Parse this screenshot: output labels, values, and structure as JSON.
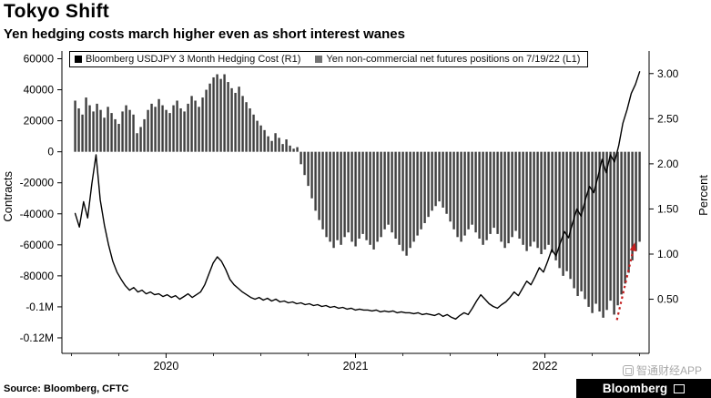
{
  "header": {
    "title": "Tokyo Shift",
    "subtitle": "Yen hedging costs march higher even as short interest wanes"
  },
  "legend": [
    {
      "label": "Bloomberg USDJPY 3 Month Hedging Cost (R1)",
      "color": "#000000"
    },
    {
      "label": "Yen non-commercial net futures positions on 7/19/22 (L1)",
      "color": "#737373"
    }
  ],
  "footer": {
    "source": "Source: Bloomberg, CFTC",
    "watermark": "智通财经APP",
    "brand": "Bloomberg"
  },
  "chart_data": {
    "type": "bar-line-combo",
    "title": "Tokyo Shift",
    "subtitle": "Yen hedging costs march higher even as short interest wanes",
    "grid": false,
    "legend_position": "top-inside-boxed",
    "x_axis": {
      "range": [
        2019.45,
        2022.55
      ],
      "tick_values": [
        2020,
        2021,
        2022
      ],
      "tick_labels": [
        "2020",
        "2021",
        "2022"
      ]
    },
    "left_axis": {
      "label": "Contracts",
      "range": [
        -130000,
        65000
      ],
      "tick_values": [
        60000,
        40000,
        20000,
        0,
        -20000,
        -40000,
        -60000,
        -80000,
        -100000,
        -120000
      ],
      "tick_labels": [
        "60000",
        "40000",
        "20000",
        "0",
        "-20000",
        "-40000",
        "-60000",
        "-80000",
        "-0.1M",
        "-0.12M"
      ]
    },
    "right_axis": {
      "label": "Percent",
      "range": [
        -0.1,
        3.25
      ],
      "tick_values": [
        3.0,
        2.5,
        2.0,
        1.5,
        1.0,
        0.5
      ],
      "tick_labels": [
        "3.00",
        "2.50",
        "2.00",
        "1.50",
        "1.00",
        "0.50"
      ]
    },
    "line": {
      "name": "Bloomberg USDJPY 3 Month Hedging Cost (R1)",
      "axis": "right",
      "color": "#000000",
      "x_start": 2019.52,
      "x_end": 2022.5,
      "values": [
        1.45,
        1.3,
        1.58,
        1.4,
        1.78,
        2.1,
        1.6,
        1.32,
        1.1,
        0.92,
        0.8,
        0.72,
        0.65,
        0.6,
        0.63,
        0.58,
        0.6,
        0.56,
        0.58,
        0.55,
        0.56,
        0.53,
        0.55,
        0.52,
        0.54,
        0.5,
        0.53,
        0.56,
        0.52,
        0.55,
        0.58,
        0.66,
        0.78,
        0.9,
        0.97,
        0.92,
        0.83,
        0.72,
        0.66,
        0.62,
        0.58,
        0.55,
        0.52,
        0.5,
        0.52,
        0.49,
        0.51,
        0.48,
        0.5,
        0.47,
        0.48,
        0.46,
        0.47,
        0.45,
        0.46,
        0.44,
        0.45,
        0.43,
        0.44,
        0.42,
        0.43,
        0.41,
        0.42,
        0.4,
        0.41,
        0.39,
        0.4,
        0.38,
        0.39,
        0.38,
        0.38,
        0.37,
        0.38,
        0.36,
        0.37,
        0.36,
        0.37,
        0.35,
        0.36,
        0.35,
        0.35,
        0.34,
        0.35,
        0.33,
        0.34,
        0.33,
        0.32,
        0.34,
        0.31,
        0.33,
        0.3,
        0.28,
        0.32,
        0.35,
        0.33,
        0.4,
        0.48,
        0.55,
        0.5,
        0.45,
        0.42,
        0.4,
        0.44,
        0.47,
        0.52,
        0.58,
        0.54,
        0.62,
        0.7,
        0.66,
        0.75,
        0.85,
        0.8,
        0.92,
        1.05,
        0.98,
        1.12,
        1.25,
        1.18,
        1.35,
        1.5,
        1.42,
        1.6,
        1.75,
        1.68,
        1.85,
        2.05,
        1.9,
        2.1,
        2.02,
        2.2,
        2.45,
        2.6,
        2.78,
        2.88,
        3.02
      ]
    },
    "bars": {
      "name": "Yen non-commercial net futures positions on 7/19/22 (L1)",
      "axis": "left",
      "color": "#3f3f3f",
      "x_start": 2019.52,
      "x_end": 2022.5,
      "values": [
        33000,
        28000,
        24000,
        35000,
        30000,
        26000,
        31000,
        27000,
        22000,
        29000,
        25000,
        21000,
        18000,
        26000,
        30000,
        27000,
        24000,
        12000,
        16000,
        21000,
        27000,
        31000,
        29000,
        34000,
        30000,
        27000,
        25000,
        30000,
        33000,
        28000,
        26000,
        31000,
        36000,
        33000,
        29000,
        35000,
        40000,
        44000,
        48000,
        50000,
        47000,
        50000,
        45000,
        41000,
        38000,
        42000,
        36000,
        32000,
        28000,
        24000,
        20000,
        17000,
        14000,
        10000,
        7000,
        12000,
        9000,
        5000,
        8000,
        4000,
        2000,
        3000,
        -8000,
        -15000,
        -22000,
        -30000,
        -38000,
        -44000,
        -50000,
        -55000,
        -58000,
        -62000,
        -57000,
        -60000,
        -55000,
        -52000,
        -58000,
        -61000,
        -56000,
        -53000,
        -57000,
        -60000,
        -63000,
        -58000,
        -55000,
        -50000,
        -47000,
        -52000,
        -56000,
        -60000,
        -64000,
        -67000,
        -62000,
        -58000,
        -54000,
        -50000,
        -46000,
        -42000,
        -38000,
        -35000,
        -32000,
        -36000,
        -40000,
        -45000,
        -50000,
        -55000,
        -58000,
        -54000,
        -50000,
        -47000,
        -52000,
        -56000,
        -60000,
        -57000,
        -53000,
        -49000,
        -53000,
        -58000,
        -62000,
        -59000,
        -55000,
        -51000,
        -56000,
        -60000,
        -64000,
        -61000,
        -58000,
        -62000,
        -66000,
        -63000,
        -60000,
        -65000,
        -70000,
        -75000,
        -80000,
        -77000,
        -82000,
        -88000,
        -93000,
        -90000,
        -95000,
        -100000,
        -104000,
        -98000,
        -103000,
        -107000,
        -102000,
        -96000,
        -105000,
        -99000,
        -92000,
        -85000,
        -78000,
        -70000,
        -64000,
        -58000
      ]
    },
    "annotation": {
      "type": "dotted-arrow",
      "color": "#c41f1f",
      "y_axis": "right",
      "from_x": 2022.38,
      "from_y": 0.27,
      "to_x": 2022.47,
      "to_y": 1.08
    }
  }
}
